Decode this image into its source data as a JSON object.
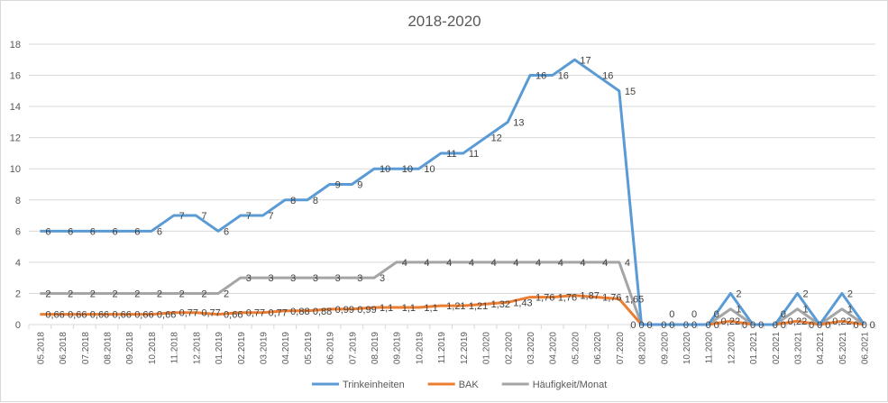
{
  "chart_data": {
    "type": "line",
    "title": "2018-2020",
    "xlabel": "",
    "ylabel": "",
    "ylim": [
      0,
      18
    ],
    "yticks": [
      0,
      2,
      4,
      6,
      8,
      10,
      12,
      14,
      16,
      18
    ],
    "grid": true,
    "legend_position": "bottom",
    "categories": [
      "05.2018",
      "06.2018",
      "07.2018",
      "08.2018",
      "09.2018",
      "10.2018",
      "11.2018",
      "12.2018",
      "01.2019",
      "02.2019",
      "03.2019",
      "04.2019",
      "05.2019",
      "06.2019",
      "07.2019",
      "08.2019",
      "09.2019",
      "10.2019",
      "11.2019",
      "12.2019",
      "01.2020",
      "02.2020",
      "03.2020",
      "04.2020",
      "05.2020",
      "06.2020",
      "07.2020",
      "08.2020",
      "09.2020",
      "10.2020",
      "11.2020",
      "12.2020",
      "01.2021",
      "02.2021",
      "03.2021",
      "04.2021",
      "05.2021",
      "06.2021"
    ],
    "series": [
      {
        "name": "Trinkeinheiten",
        "color": "#5b9bd5",
        "values": [
          6,
          6,
          6,
          6,
          6,
          6,
          7,
          7,
          6,
          7,
          7,
          8,
          8,
          9,
          9,
          10,
          10,
          10,
          11,
          11,
          12,
          13,
          16,
          16,
          17,
          16,
          15,
          0,
          0,
          0,
          0,
          2,
          0,
          0,
          2,
          0,
          2,
          0
        ],
        "labels": [
          "6",
          "6",
          "6",
          "6",
          "6",
          "6",
          "7",
          "7",
          "6",
          "7",
          "7",
          "8",
          "8",
          "9",
          "9",
          "10",
          "10",
          "10",
          "11",
          "11",
          "12",
          "13",
          "16",
          "16",
          "17",
          "16",
          "15",
          "0",
          "0",
          "0",
          "0",
          "2",
          "0",
          "0",
          "2",
          "0",
          "2",
          "0"
        ]
      },
      {
        "name": "BAK",
        "color": "#ed7d31",
        "values": [
          0.66,
          0.66,
          0.66,
          0.66,
          0.66,
          0.66,
          0.77,
          0.77,
          0.66,
          0.77,
          0.77,
          0.88,
          0.88,
          0.99,
          0.99,
          1.1,
          1.1,
          1.1,
          1.21,
          1.21,
          1.32,
          1.43,
          1.76,
          1.76,
          1.87,
          1.76,
          1.65,
          0,
          0,
          0,
          0,
          0.22,
          0,
          0,
          0.22,
          0,
          0.22,
          0
        ],
        "labels": [
          "0,66",
          "0,66",
          "0,66",
          "0,66",
          "0,66",
          "0,66",
          "0,77",
          "0,77",
          "0,66",
          "0,77",
          "0,77",
          "0,88",
          "0,88",
          "0,99",
          "0,99",
          "1,1",
          "1,1",
          "1,1",
          "1,21",
          "1,21",
          "1,32",
          "1,43",
          "1,76",
          "1,76",
          "1,87",
          "1,76",
          "1,65",
          "0",
          "0",
          "0",
          "0",
          "0,22",
          "0",
          "0",
          "0,22",
          "0",
          "0,22",
          "0"
        ]
      },
      {
        "name": "Häufigkeit/Monat",
        "color": "#a5a5a5",
        "values": [
          2,
          2,
          2,
          2,
          2,
          2,
          2,
          2,
          2,
          3,
          3,
          3,
          3,
          3,
          3,
          3,
          4,
          4,
          4,
          4,
          4,
          4,
          4,
          4,
          4,
          4,
          4,
          0,
          0,
          0,
          0,
          1,
          0,
          0,
          1,
          0,
          1,
          0
        ],
        "labels": [
          "2",
          "2",
          "2",
          "2",
          "2",
          "2",
          "2",
          "2",
          "2",
          "3",
          "3",
          "3",
          "3",
          "3",
          "3",
          "3",
          "4",
          "4",
          "4",
          "4",
          "4",
          "4",
          "4",
          "4",
          "4",
          "4",
          "4",
          "0",
          "0",
          "0",
          "0",
          "1",
          "0",
          "0",
          "1",
          "0",
          "1",
          "0"
        ]
      }
    ]
  }
}
